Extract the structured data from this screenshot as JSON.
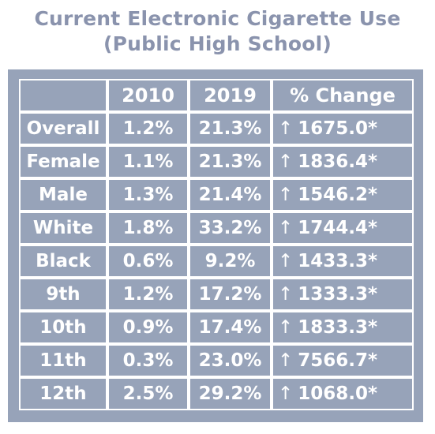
{
  "title": {
    "line1": "Current Electronic Cigarette Use",
    "line2": "(Public High School)"
  },
  "colors": {
    "title": "#8a93ad",
    "panel": "#97a3b9",
    "grid_lines": "#ffffff",
    "text": "#ffffff"
  },
  "chart_data": {
    "type": "table",
    "columns": [
      "",
      "2010",
      "2019",
      "% Change"
    ],
    "rows": [
      {
        "label": "Overall",
        "v2010": "1.2%",
        "v2019": "21.3%",
        "arrow": "↑",
        "change": "1675.0*"
      },
      {
        "label": "Female",
        "v2010": "1.1%",
        "v2019": "21.3%",
        "arrow": "↑",
        "change": "1836.4*"
      },
      {
        "label": "Male",
        "v2010": "1.3%",
        "v2019": "21.4%",
        "arrow": "↑",
        "change": "1546.2*"
      },
      {
        "label": "White",
        "v2010": "1.8%",
        "v2019": "33.2%",
        "arrow": "↑",
        "change": "1744.4*"
      },
      {
        "label": "Black",
        "v2010": "0.6%",
        "v2019": "9.2%",
        "arrow": "↑",
        "change": "1433.3*"
      },
      {
        "label": "9th",
        "v2010": "1.2%",
        "v2019": "17.2%",
        "arrow": "↑",
        "change": "1333.3*"
      },
      {
        "label": "10th",
        "v2010": "0.9%",
        "v2019": "17.4%",
        "arrow": "↑",
        "change": "1833.3*"
      },
      {
        "label": "11th",
        "v2010": "0.3%",
        "v2019": "23.0%",
        "arrow": "↑",
        "change": "7566.7*"
      },
      {
        "label": "12th",
        "v2010": "2.5%",
        "v2019": "29.2%",
        "arrow": "↑",
        "change": "1068.0*"
      }
    ]
  }
}
